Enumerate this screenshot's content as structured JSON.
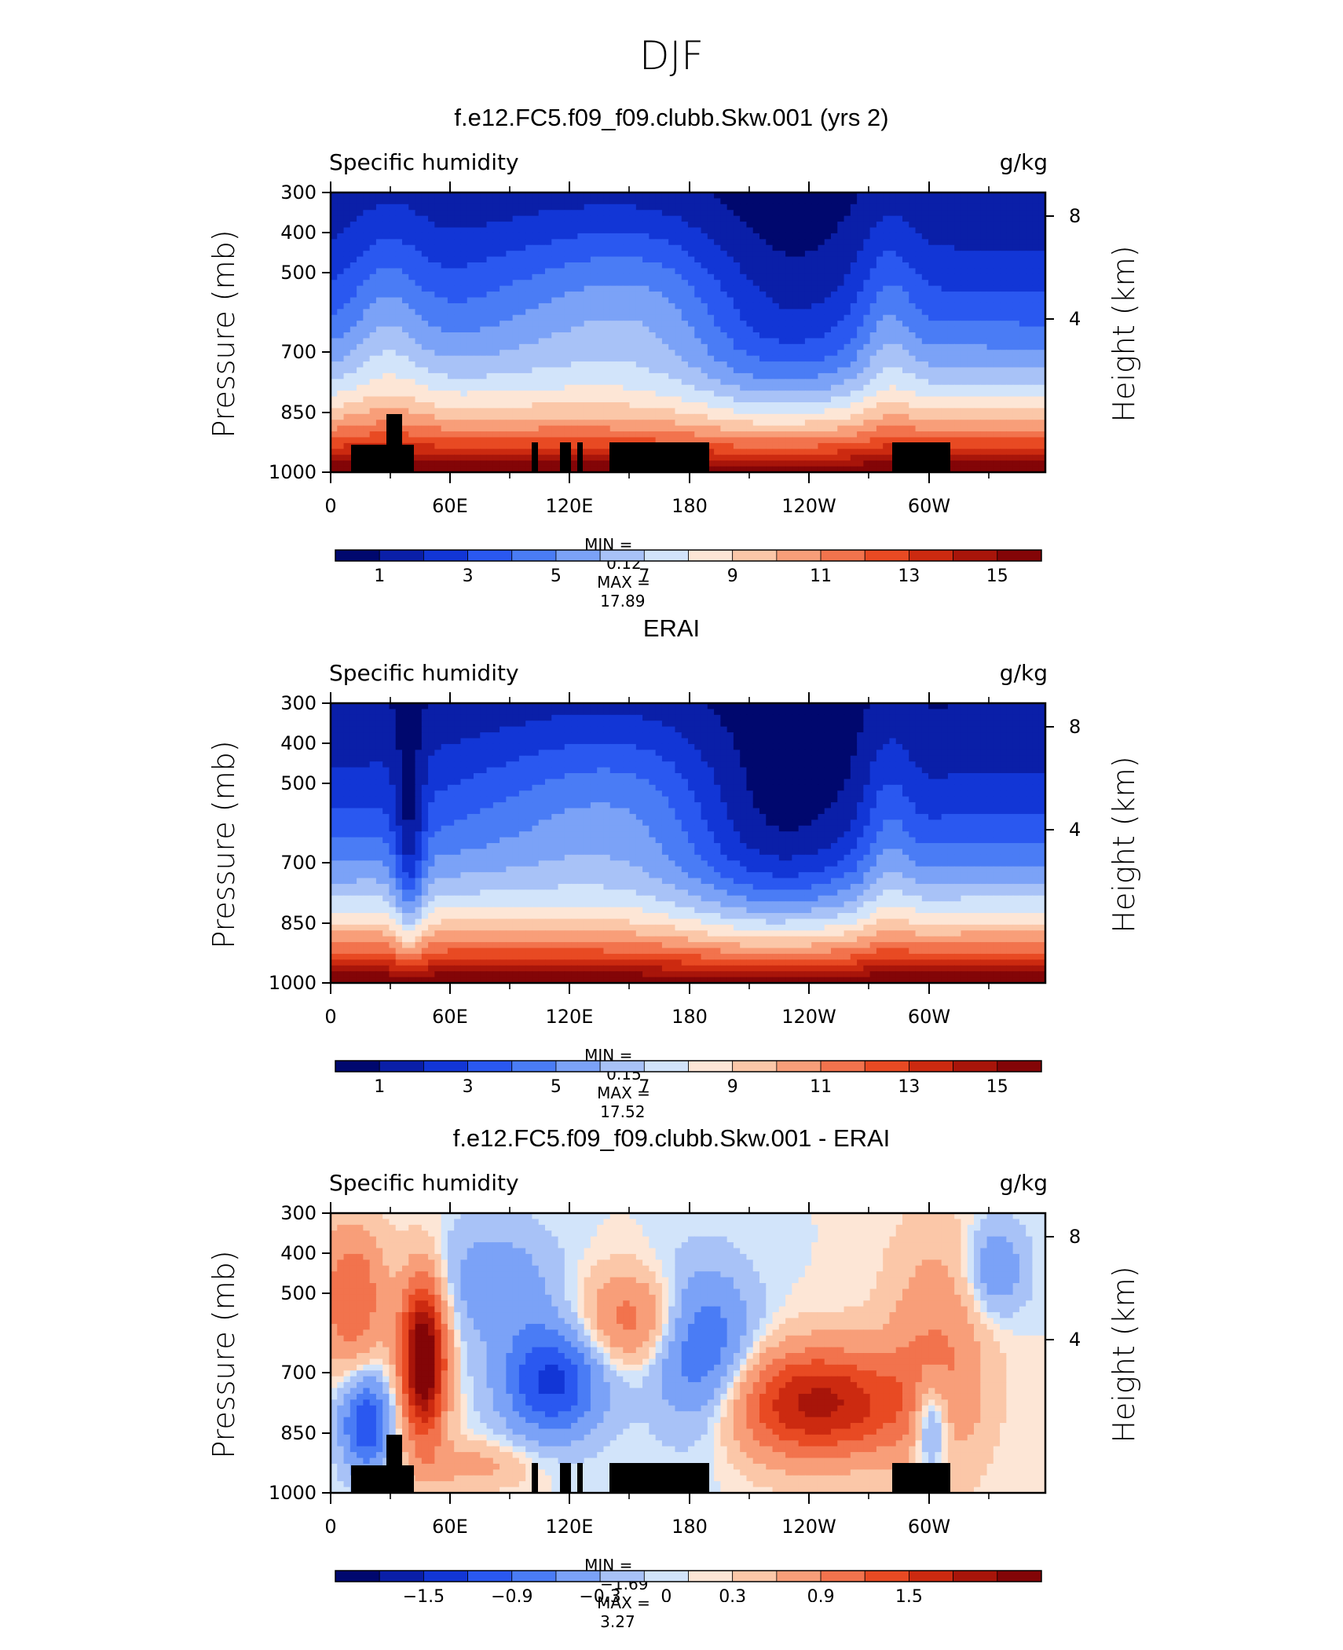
{
  "figure_title": "DJF",
  "chart_data": [
    {
      "type": "heatmap",
      "title": "f.e12.FC5.f09_f09.clubb.Skw.001 (yrs 2)",
      "left_label": "Specific humidity",
      "right_label": "g/kg",
      "ylabel": "Pressure (mb)",
      "y2label": "Height (km)",
      "yticks": [
        "300",
        "400",
        "500",
        "700",
        "850",
        "1000"
      ],
      "y2ticks": [
        "8",
        "4"
      ],
      "xticks": [
        "0",
        "60E",
        "120E",
        "180",
        "120W",
        "60W"
      ],
      "min_label": "MIN =",
      "min_value": "0.12",
      "max_label": "MAX =",
      "max_value": "17.89",
      "colorbar_labels": [
        "1",
        "3",
        "5",
        "7",
        "9",
        "11",
        "13",
        "15"
      ],
      "colorbar_levels": [
        1,
        2,
        3,
        4,
        5,
        6,
        7,
        8,
        9,
        10,
        11,
        12,
        13,
        14,
        15,
        16
      ],
      "color_range": [
        0,
        17
      ],
      "grid": false
    },
    {
      "type": "heatmap",
      "title": "ERAI",
      "left_label": "Specific humidity",
      "right_label": "g/kg",
      "ylabel": "Pressure (mb)",
      "y2label": "Height (km)",
      "yticks": [
        "300",
        "400",
        "500",
        "700",
        "850",
        "1000"
      ],
      "y2ticks": [
        "8",
        "4"
      ],
      "xticks": [
        "0",
        "60E",
        "120E",
        "180",
        "120W",
        "60W"
      ],
      "min_label": "MIN =",
      "min_value": "0.15",
      "max_label": "MAX =",
      "max_value": "17.52",
      "colorbar_labels": [
        "1",
        "3",
        "5",
        "7",
        "9",
        "11",
        "13",
        "15"
      ],
      "colorbar_levels": [
        1,
        2,
        3,
        4,
        5,
        6,
        7,
        8,
        9,
        10,
        11,
        12,
        13,
        14,
        15,
        16
      ],
      "color_range": [
        0,
        17
      ],
      "grid": false
    },
    {
      "type": "heatmap",
      "title": "f.e12.FC5.f09_f09.clubb.Skw.001 - ERAI",
      "left_label": "Specific humidity",
      "right_label": "g/kg",
      "ylabel": "Pressure (mb)",
      "y2label": "Height (km)",
      "yticks": [
        "300",
        "400",
        "500",
        "700",
        "850",
        "1000"
      ],
      "y2ticks": [
        "8",
        "4"
      ],
      "xticks": [
        "0",
        "60E",
        "120E",
        "180",
        "120W",
        "60W"
      ],
      "min_label": "MIN =",
      "min_value": "−1.69",
      "max_label": "MAX =",
      "max_value": "3.27",
      "colorbar_labels": [
        "−1.5",
        "−0.9",
        "−0.3",
        "0",
        "0.3",
        "0.9",
        "1.5"
      ],
      "colorbar_levels": [
        -1.8,
        -1.5,
        -1.2,
        -0.9,
        -0.6,
        -0.3,
        -0.1,
        0,
        0.1,
        0.3,
        0.6,
        0.9,
        1.2,
        1.5,
        1.8
      ],
      "color_range": [
        -1.8,
        1.8
      ],
      "grid": false
    }
  ],
  "palette": [
    "#00086e",
    "#0a1fa8",
    "#1236d6",
    "#2a58f0",
    "#4a7cf5",
    "#7ba2f7",
    "#a8c2f7",
    "#d2e4fa",
    "#fde6d6",
    "#fbc7a8",
    "#f89e79",
    "#f2734d",
    "#e84a23",
    "#cc2a10",
    "#a8150a",
    "#830507"
  ]
}
